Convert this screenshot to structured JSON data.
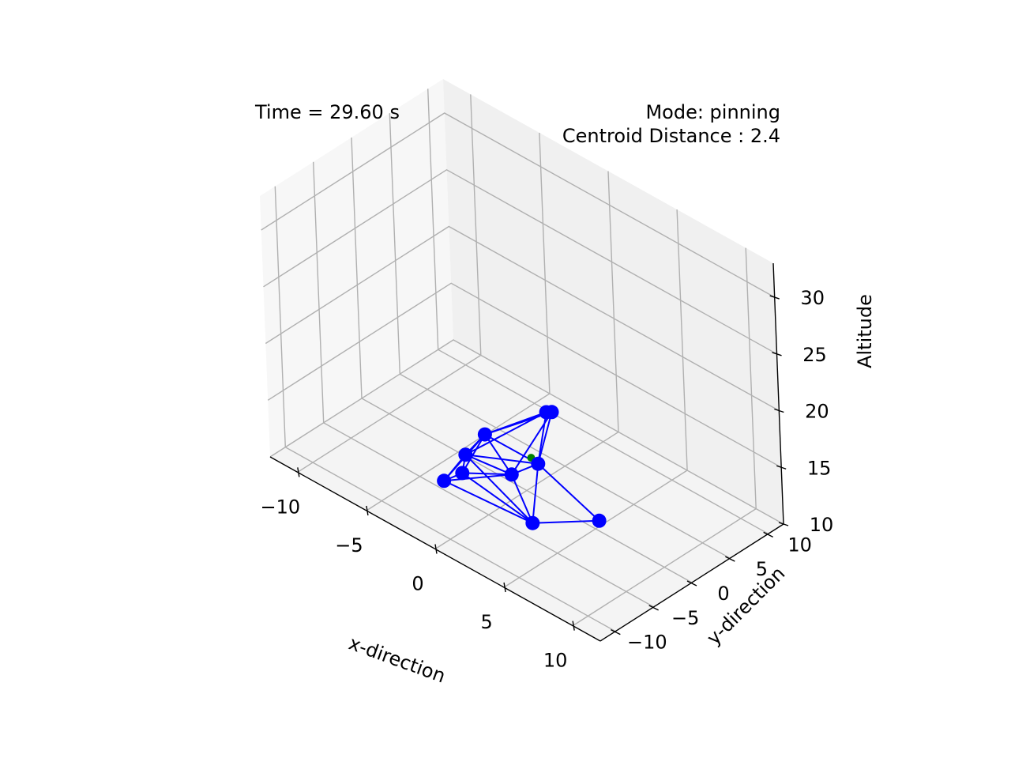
{
  "annotations": {
    "time_text": "Time = 29.60 s",
    "mode_text": "Mode: pinning",
    "centroid_text": "Centroid Distance : 2.4"
  },
  "colors": {
    "agent": "#0000ff",
    "edge": "#0000ff",
    "target": "#008000",
    "grid": "#b0b0b0",
    "pane_left": "#f7f7f7",
    "pane_back": "#f0f0f0",
    "pane_floor": "#f4f4f4"
  },
  "chart_data": {
    "type": "scatter3d",
    "title": "",
    "xlabel": "x-direction",
    "ylabel": "y-direction",
    "zlabel": "Altitude",
    "xlim": [
      -12,
      12
    ],
    "ylim": [
      -12,
      12
    ],
    "zlim": [
      10,
      33
    ],
    "x_ticks": [
      -10,
      -5,
      0,
      5,
      10
    ],
    "y_ticks": [
      -10,
      -5,
      0,
      5,
      10
    ],
    "z_ticks": [
      10,
      15,
      20,
      25,
      30
    ],
    "x_tick_labels": [
      "−10",
      "−5",
      "0",
      "5",
      "10"
    ],
    "y_tick_labels": [
      "−10",
      "−5",
      "0",
      "5",
      "10"
    ],
    "z_tick_labels": [
      "10",
      "15",
      "20",
      "25",
      "30"
    ],
    "grid": true,
    "agents": [
      {
        "x": -1.5,
        "y": -2.5,
        "z": 15.0
      },
      {
        "x": 1.5,
        "y": 1.0,
        "z": 17.5
      },
      {
        "x": -3.0,
        "y": -2.5,
        "z": 12.2
      },
      {
        "x": 1.5,
        "y": -1.0,
        "z": 13.8
      },
      {
        "x": -3.0,
        "y": -3.0,
        "z": 10.8
      },
      {
        "x": -3.8,
        "y": -4.0,
        "z": 10.0
      },
      {
        "x": -0.5,
        "y": -1.0,
        "z": 11.5
      },
      {
        "x": 1.5,
        "y": -2.0,
        "z": 9.0
      },
      {
        "x": 5.0,
        "y": 0.5,
        "z": 10.5
      },
      {
        "x": 0.8,
        "y": 1.5,
        "z": 16.8
      }
    ],
    "target": {
      "x": 0.3,
      "y": 0.2,
      "z": 13.0
    },
    "edges": [
      [
        0,
        1
      ],
      [
        0,
        2
      ],
      [
        0,
        3
      ],
      [
        0,
        4
      ],
      [
        0,
        5
      ],
      [
        0,
        6
      ],
      [
        0,
        9
      ],
      [
        1,
        3
      ],
      [
        1,
        6
      ],
      [
        1,
        9
      ],
      [
        2,
        3
      ],
      [
        2,
        4
      ],
      [
        2,
        5
      ],
      [
        2,
        6
      ],
      [
        2,
        7
      ],
      [
        3,
        6
      ],
      [
        3,
        7
      ],
      [
        3,
        8
      ],
      [
        4,
        5
      ],
      [
        4,
        6
      ],
      [
        4,
        7
      ],
      [
        5,
        6
      ],
      [
        5,
        7
      ],
      [
        6,
        7
      ],
      [
        7,
        8
      ],
      [
        9,
        2
      ],
      [
        9,
        3
      ]
    ]
  }
}
